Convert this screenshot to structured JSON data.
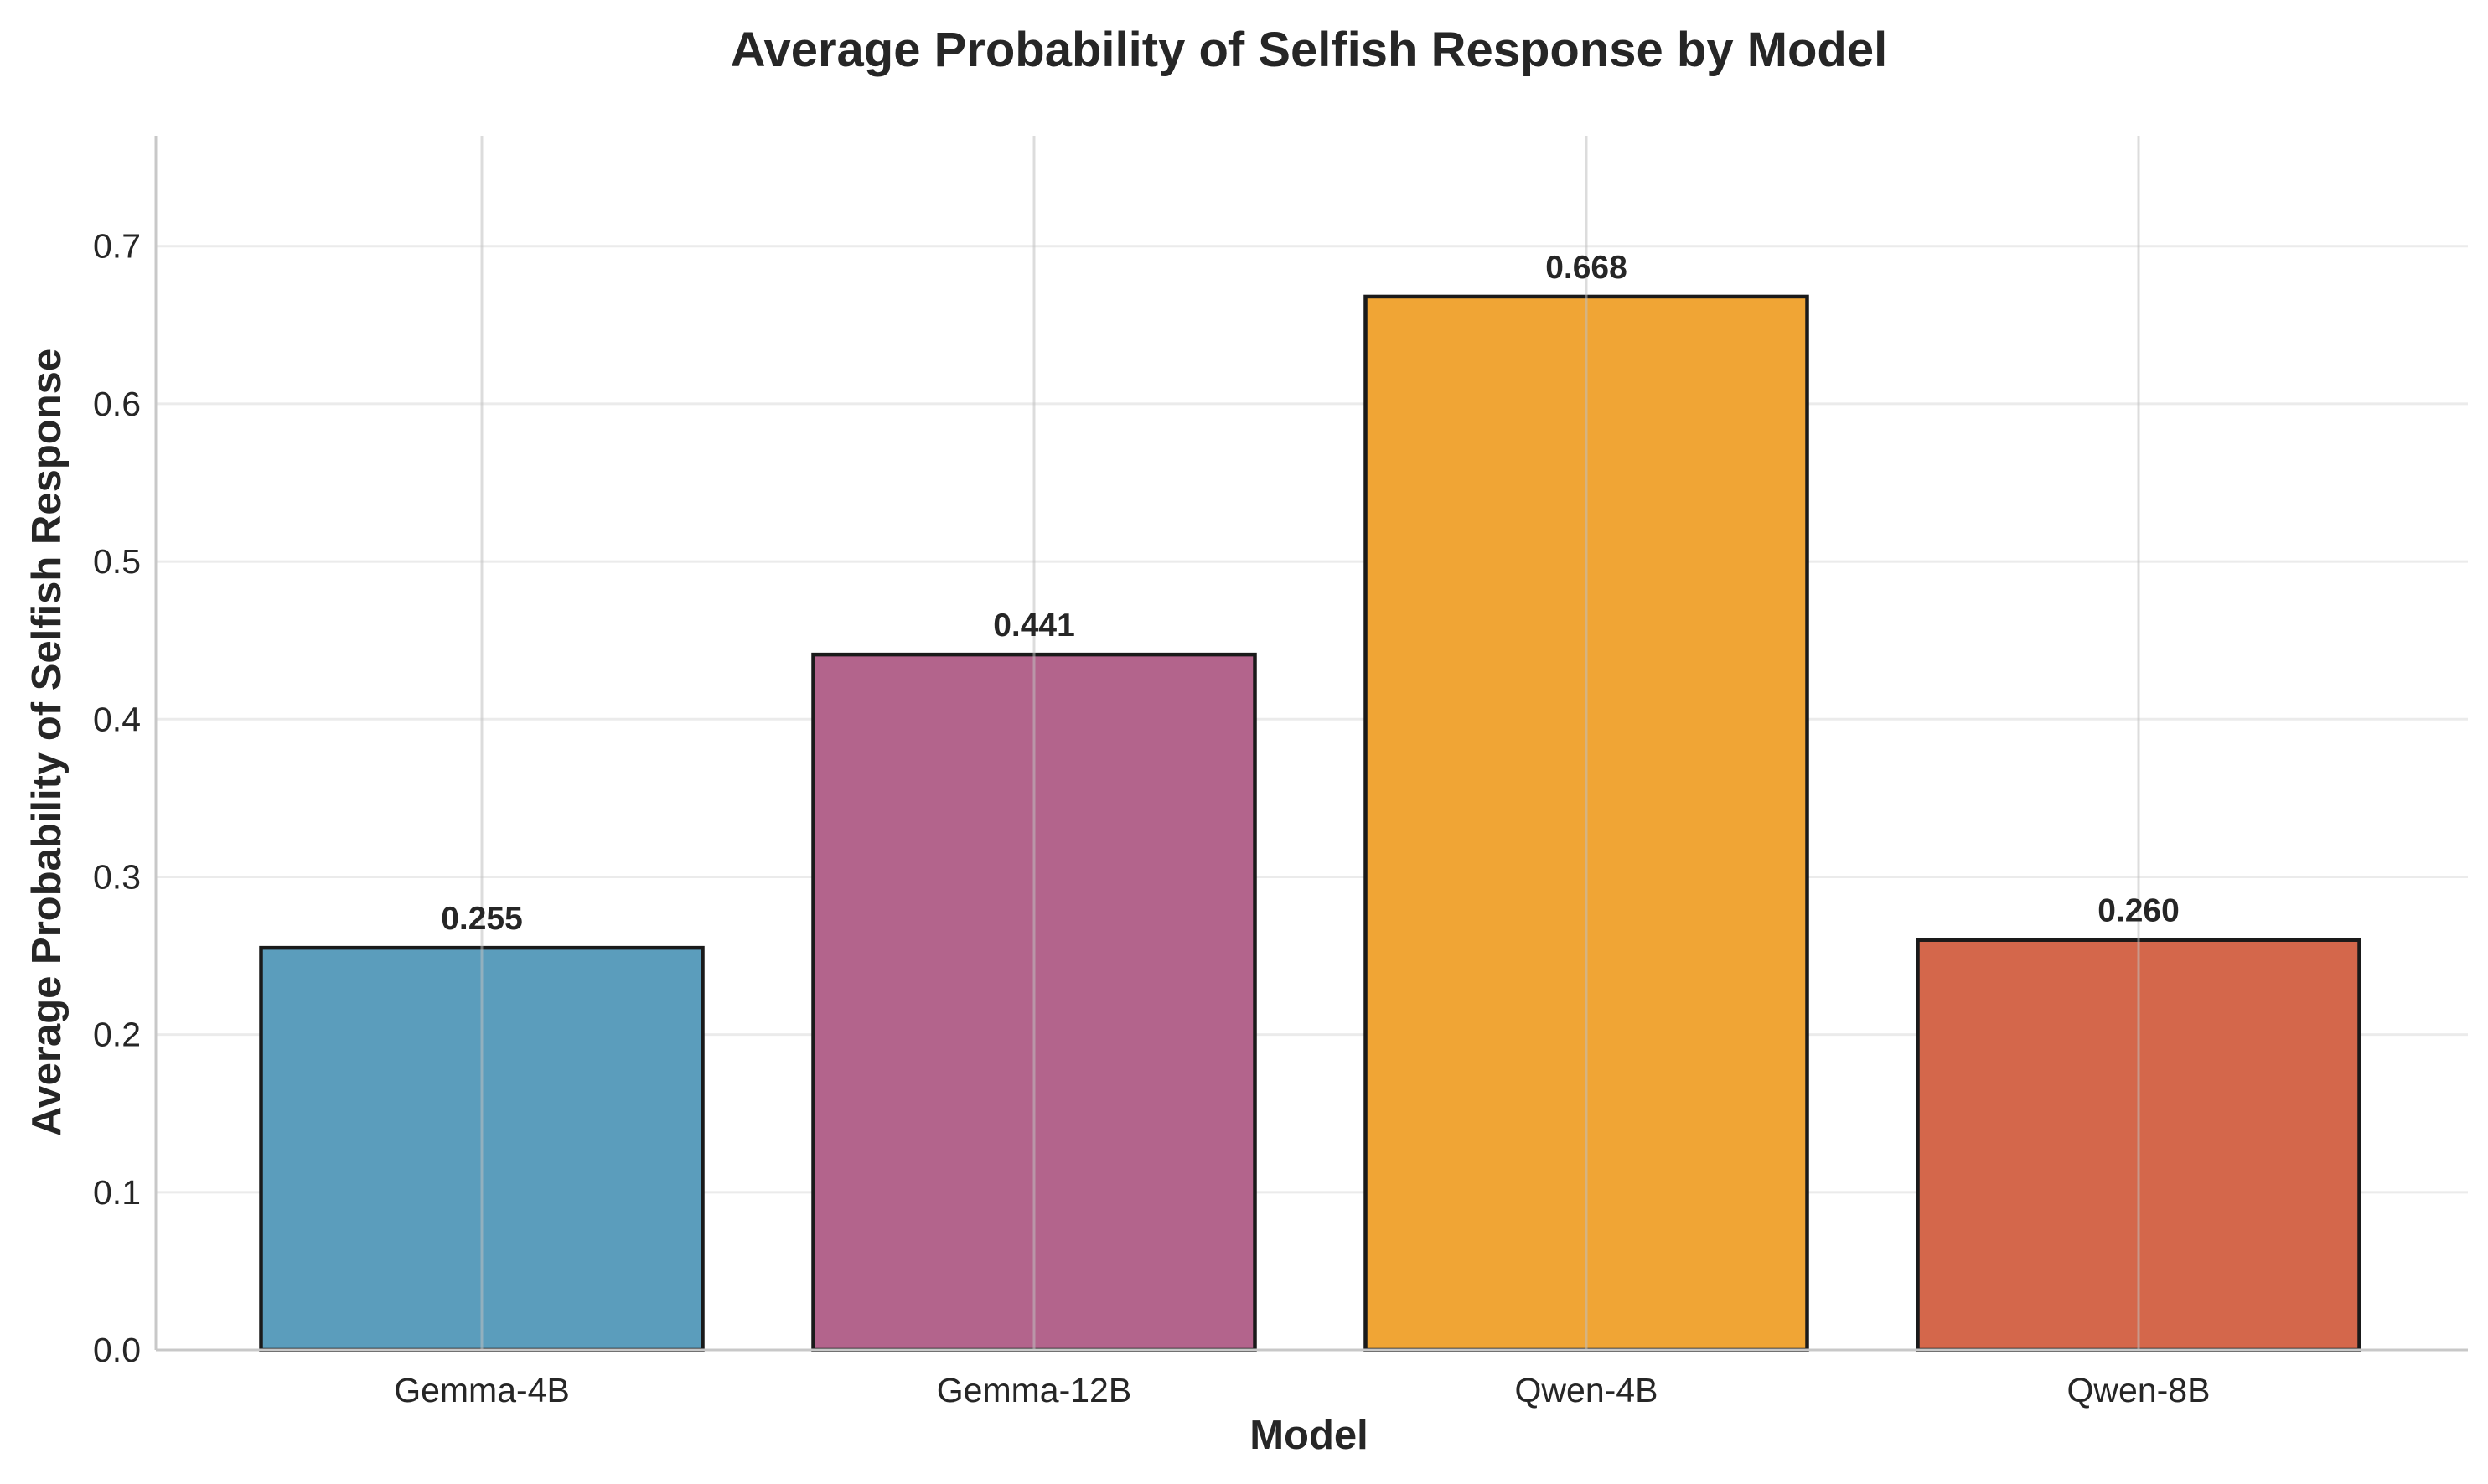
{
  "chart_data": {
    "type": "bar",
    "title": "Average Probability of Selfish Response by Model",
    "xlabel": "Model",
    "ylabel": "Average Probability of Selfish Response",
    "categories": [
      "Gemma-4B",
      "Gemma-12B",
      "Qwen-4B",
      "Qwen-8B"
    ],
    "values": [
      0.255,
      0.441,
      0.668,
      0.26
    ],
    "value_labels": [
      "0.255",
      "0.441",
      "0.668",
      "0.260"
    ],
    "colors": [
      "#5b9dbc",
      "#b3648c",
      "#f0a535",
      "#d4674b"
    ],
    "ylim": [
      0,
      0.77
    ],
    "yticks": [
      0.0,
      0.1,
      0.2,
      0.3,
      0.4,
      0.5,
      0.6,
      0.7
    ],
    "ytick_labels": [
      "0.0",
      "0.1",
      "0.2",
      "0.3",
      "0.4",
      "0.5",
      "0.6",
      "0.7"
    ],
    "grid": true,
    "legend": "none"
  }
}
